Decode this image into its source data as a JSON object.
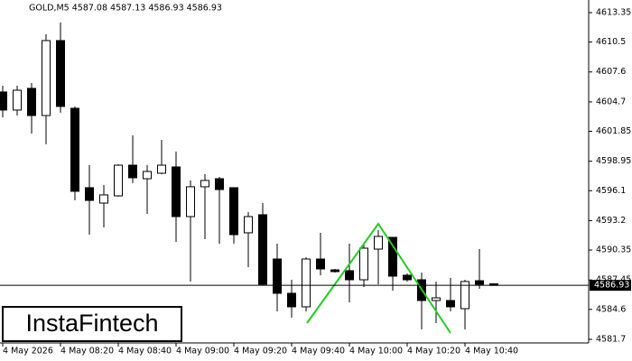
{
  "chart_data": {
    "type": "candlestick",
    "title": "GOLD,M5  4587.08 4587.13 4586.93 4586.93",
    "categories": [
      "4 May 2026",
      null,
      null,
      null,
      "4 May 08:20",
      null,
      null,
      null,
      "4 May 08:40",
      null,
      null,
      null,
      "4 May 09:00",
      null,
      null,
      null,
      "4 May 09:20",
      null,
      null,
      null,
      "4 May 09:40",
      null,
      null,
      null,
      "4 May 10:00",
      null,
      null,
      null,
      "4 May 10:20",
      null,
      null,
      null,
      "4 May 10:40",
      null,
      null
    ],
    "open": [
      4605.66,
      4603.91,
      4606.01,
      4603.38,
      4610.64,
      4604.08,
      4596.39,
      4594.9,
      4595.6,
      4598.57,
      4597.26,
      4597.79,
      4598.4,
      4593.59,
      4596.48,
      4597.26,
      4596.39,
      4592.02,
      4593.77,
      4589.48,
      4586.16,
      4584.85,
      4589.48,
      4588.43,
      4588.35,
      4587.47,
      4590.44,
      4591.58,
      4587.91,
      4587.47,
      4585.46,
      4585.46,
      4584.67,
      4587.38,
      4587.08
    ],
    "high": [
      4606.27,
      4606.27,
      4606.53,
      4611.25,
      4612.39,
      4604.26,
      4598.57,
      4596.65,
      4598.66,
      4601.46,
      4598.57,
      4601.02,
      4599.89,
      4597.09,
      4597.7,
      4597.44,
      4596.39,
      4594.03,
      4594.9,
      4590.97,
      4587.47,
      4589.66,
      4592.02,
      4588.52,
      4590.97,
      4590.97,
      4592.28,
      4591.58,
      4588.08,
      4588.17,
      4587.3,
      4587.65,
      4587.47,
      4590.44,
      4587.13
    ],
    "low": [
      4603.21,
      4603.38,
      4601.63,
      4600.59,
      4603.65,
      4595.16,
      4591.84,
      4592.54,
      4595.51,
      4596.83,
      4593.85,
      4597.7,
      4591.14,
      4587.3,
      4591.4,
      4590.97,
      4590.97,
      4588.69,
      4587.03,
      4584.41,
      4583.8,
      4584.41,
      4587.91,
      4588.17,
      4585.28,
      4586.77,
      4587.03,
      4586.42,
      4587.3,
      4582.66,
      4583.27,
      4584.41,
      4582.66,
      4586.6,
      4586.93
    ],
    "close": [
      4603.91,
      4605.83,
      4603.38,
      4610.64,
      4604.26,
      4596.04,
      4595.16,
      4595.69,
      4598.57,
      4597.35,
      4597.96,
      4598.57,
      4593.59,
      4596.48,
      4597.09,
      4596.21,
      4591.84,
      4593.59,
      4587.03,
      4586.16,
      4584.85,
      4589.48,
      4588.52,
      4588.26,
      4587.47,
      4590.53,
      4591.67,
      4587.82,
      4587.47,
      4585.46,
      4585.72,
      4584.85,
      4587.3,
      4587.03,
      4586.93
    ],
    "ylim": [
      4581.35,
      4614.57
    ],
    "yticks": [
      4581.7,
      4584.6,
      4587.45,
      4590.35,
      4593.2,
      4596.1,
      4598.95,
      4601.85,
      4604.7,
      4607.6,
      4610.5,
      4613.35
    ],
    "current_price": 4586.93,
    "up_color": "#ffffff",
    "down_color": "#000000",
    "pattern_color": "#22cc22"
  },
  "watermark": "InstaFintech"
}
